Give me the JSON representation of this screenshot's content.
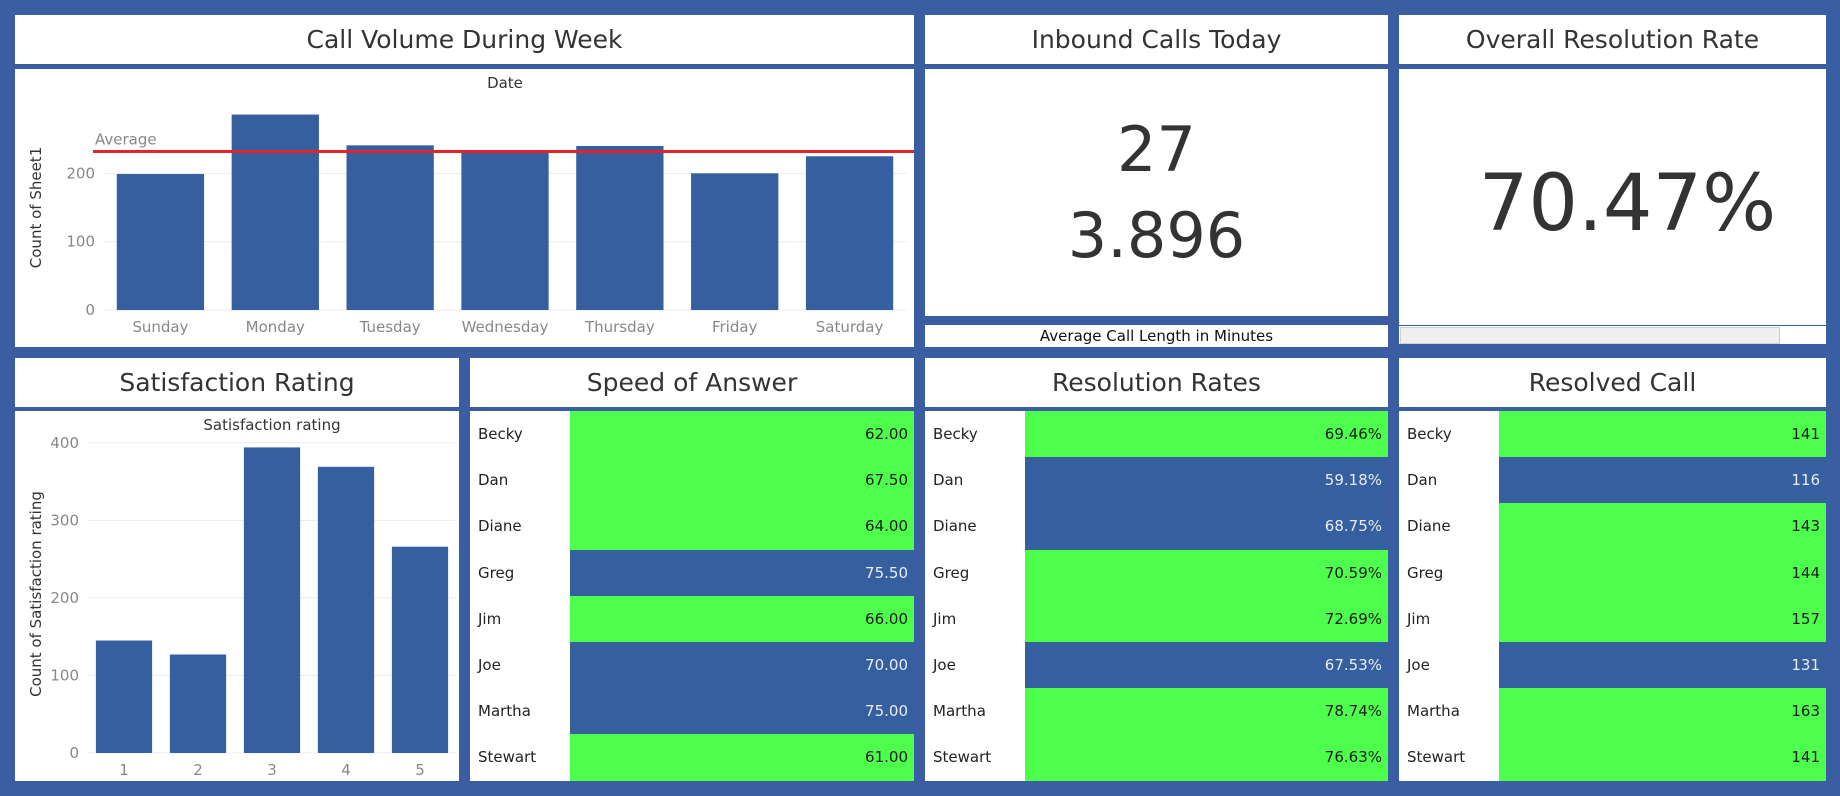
{
  "colors": {
    "background": "#3a5ea1",
    "bar": "#365f9f",
    "high": "#4dfe4d",
    "low": "#365f9f",
    "average_line": "#e0242a"
  },
  "call_volume": {
    "title": "Call Volume During Week",
    "chart_data": {
      "type": "bar",
      "title": "Date",
      "ylabel": "Count of Sheet1",
      "categories": [
        "Sunday",
        "Monday",
        "Tuesday",
        "Wednesday",
        "Thursday",
        "Friday",
        "Saturday"
      ],
      "values": [
        199,
        286,
        241,
        230,
        240,
        200,
        225
      ],
      "ylim": [
        0,
        300
      ],
      "yticks": [
        "0",
        "100",
        "200"
      ],
      "reference_line": {
        "label": "Average",
        "value": 232
      }
    }
  },
  "inbound": {
    "title": "Inbound Calls Today",
    "value": "27",
    "avg_length": "3.896",
    "avg_length_label": "Average Call Length in Minutes"
  },
  "resolution_overall": {
    "title": "Overall Resolution Rate",
    "value": "70.47%"
  },
  "satisfaction": {
    "title": "Satisfaction Rating",
    "chart_data": {
      "type": "bar",
      "title": "Satisfaction rating",
      "ylabel": "Count of Satisfaction rating",
      "categories": [
        "1",
        "2",
        "3",
        "4",
        "5"
      ],
      "values": [
        145,
        127,
        394,
        369,
        266
      ],
      "ylim": [
        0,
        410
      ],
      "yticks": [
        "0",
        "100",
        "200",
        "300",
        "400"
      ]
    }
  },
  "speed": {
    "title": "Speed of Answer",
    "rows": [
      {
        "name": "Becky",
        "value": "62.00",
        "status": "high"
      },
      {
        "name": "Dan",
        "value": "67.50",
        "status": "high"
      },
      {
        "name": "Diane",
        "value": "64.00",
        "status": "high"
      },
      {
        "name": "Greg",
        "value": "75.50",
        "status": "low"
      },
      {
        "name": "Jim",
        "value": "66.00",
        "status": "high"
      },
      {
        "name": "Joe",
        "value": "70.00",
        "status": "low"
      },
      {
        "name": "Martha",
        "value": "75.00",
        "status": "low"
      },
      {
        "name": "Stewart",
        "value": "61.00",
        "status": "high"
      }
    ]
  },
  "rates": {
    "title": "Resolution Rates",
    "rows": [
      {
        "name": "Becky",
        "value": "69.46%",
        "status": "high"
      },
      {
        "name": "Dan",
        "value": "59.18%",
        "status": "low"
      },
      {
        "name": "Diane",
        "value": "68.75%",
        "status": "low"
      },
      {
        "name": "Greg",
        "value": "70.59%",
        "status": "high"
      },
      {
        "name": "Jim",
        "value": "72.69%",
        "status": "high"
      },
      {
        "name": "Joe",
        "value": "67.53%",
        "status": "low"
      },
      {
        "name": "Martha",
        "value": "78.74%",
        "status": "high"
      },
      {
        "name": "Stewart",
        "value": "76.63%",
        "status": "high"
      }
    ]
  },
  "resolved": {
    "title": "Resolved Call",
    "rows": [
      {
        "name": "Becky",
        "value": "141",
        "status": "high"
      },
      {
        "name": "Dan",
        "value": "116",
        "status": "low"
      },
      {
        "name": "Diane",
        "value": "143",
        "status": "high"
      },
      {
        "name": "Greg",
        "value": "144",
        "status": "high"
      },
      {
        "name": "Jim",
        "value": "157",
        "status": "high"
      },
      {
        "name": "Joe",
        "value": "131",
        "status": "low"
      },
      {
        "name": "Martha",
        "value": "163",
        "status": "high"
      },
      {
        "name": "Stewart",
        "value": "141",
        "status": "high"
      }
    ]
  }
}
